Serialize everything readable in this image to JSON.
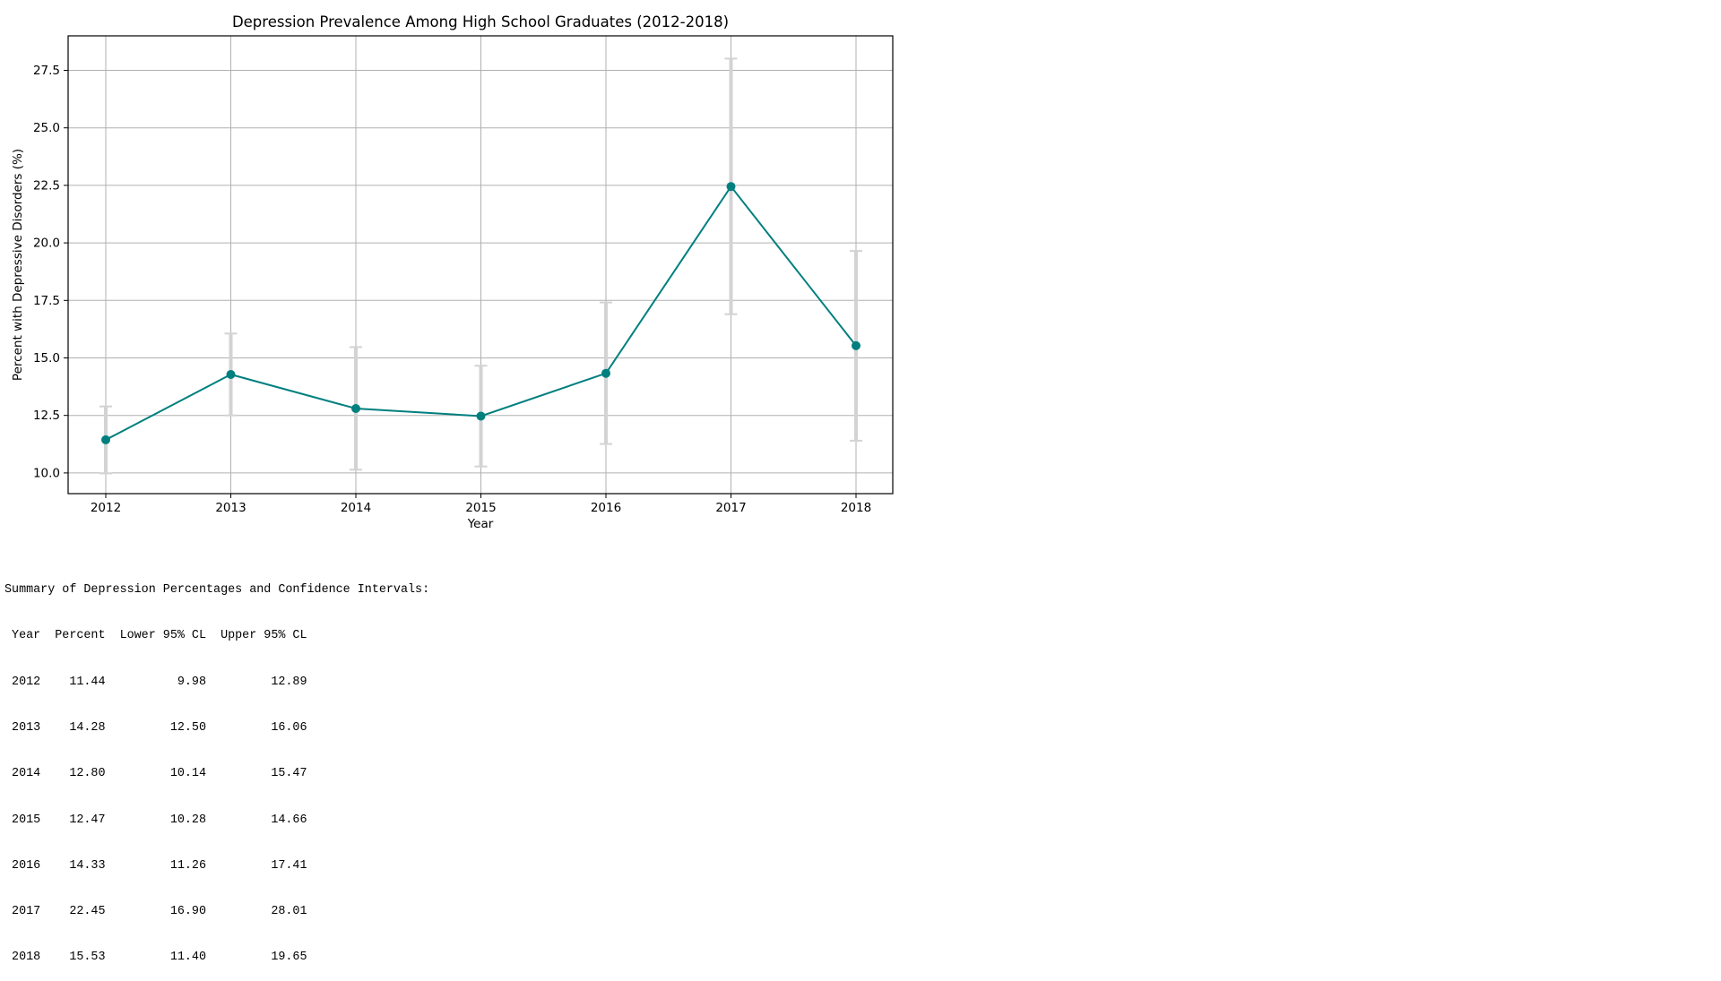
{
  "chart_data": {
    "type": "line",
    "title": "Depression Prevalence Among High School Graduates (2012-2018)",
    "xlabel": "Year",
    "ylabel": "Percent with Depressive Disorders (%)",
    "x": [
      "2012",
      "2013",
      "2014",
      "2015",
      "2016",
      "2017",
      "2018"
    ],
    "values": [
      11.44,
      14.28,
      12.8,
      12.47,
      14.33,
      22.45,
      15.53
    ],
    "lower_ci": [
      9.98,
      12.5,
      10.14,
      10.28,
      11.26,
      16.9,
      11.4
    ],
    "upper_ci": [
      12.89,
      16.06,
      15.47,
      14.66,
      17.41,
      28.01,
      19.65
    ],
    "ylim": [
      9.1,
      29.0
    ],
    "yticks": [
      "10.0",
      "12.5",
      "15.0",
      "17.5",
      "20.0",
      "22.5",
      "25.0",
      "27.5"
    ],
    "grid": true,
    "line_color": "#007f7f",
    "errorbar_color": "#d3d3d3"
  },
  "summary": {
    "heading": "Summary of Depression Percentages and Confidence Intervals:",
    "header_line": " Year  Percent  Lower 95% CL  Upper 95% CL",
    "rows": [
      " 2012    11.44          9.98         12.89",
      " 2013    14.28         12.50         16.06",
      " 2014    12.80         10.14         15.47",
      " 2015    12.47         10.28         14.66",
      " 2016    14.33         11.26         17.41",
      " 2017    22.45         16.90         28.01",
      " 2018    15.53         11.40         19.65"
    ]
  }
}
